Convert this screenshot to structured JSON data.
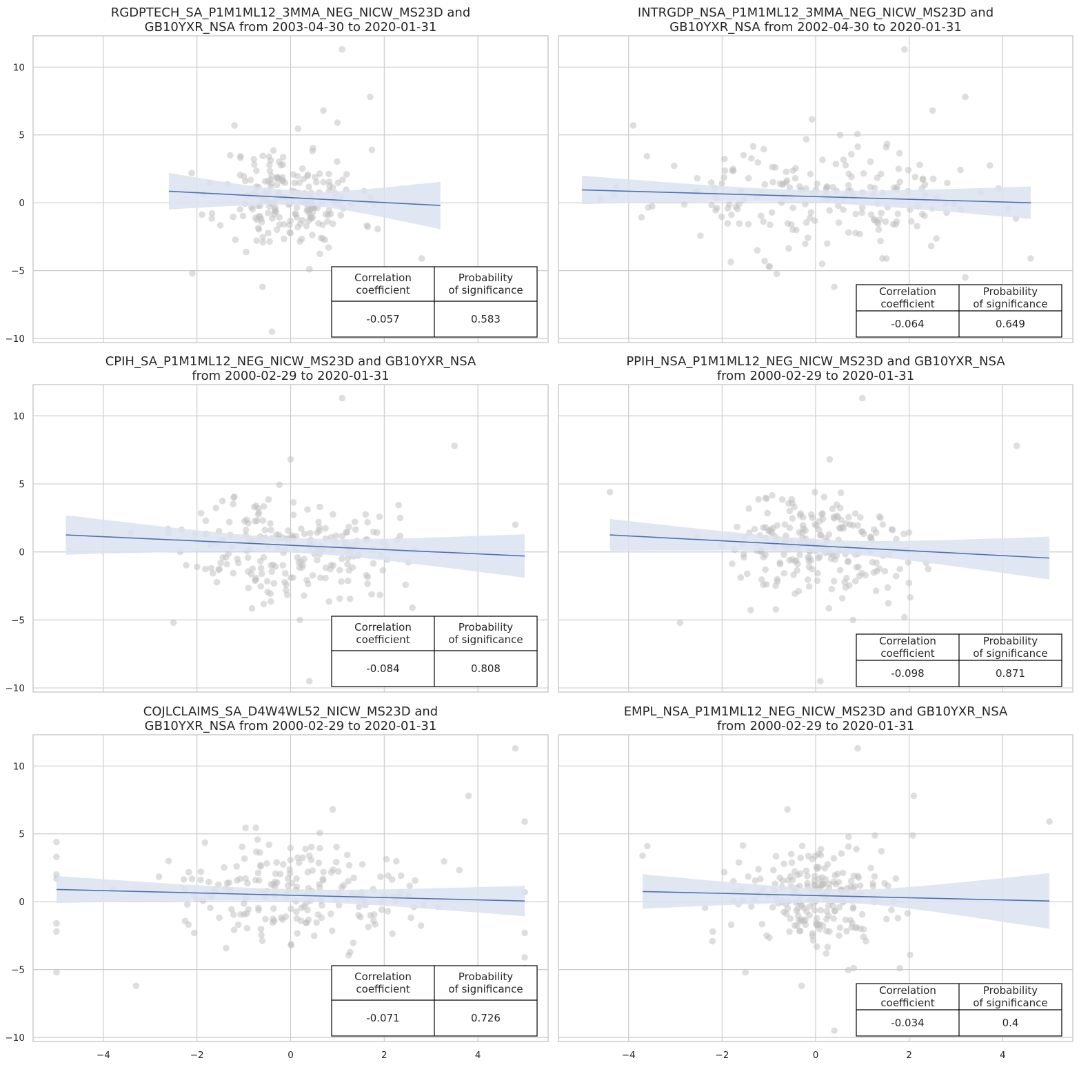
{
  "chart_data": [
    {
      "type": "scatter",
      "title_lines": [
        "RGDPTECH_SA_P1M1ML12_3MMA_NEG_NICW_MS23D and",
        "GB10YXR_NSA from 2003-04-30 to 2020-01-31"
      ],
      "xlim": [
        -5.5,
        5.5
      ],
      "ylim": [
        -10.3,
        12.3
      ],
      "xticks": [
        -4,
        -2,
        0,
        2,
        4
      ],
      "yticks": [
        -10,
        -5,
        0,
        5,
        10
      ],
      "x_tick_labels_visible": false,
      "regression": {
        "x": [
          -2.6,
          3.2
        ],
        "y": [
          0.85,
          -0.2
        ],
        "ci_lo_start": -0.55,
        "ci_hi_start": 2.15,
        "ci_lo_end": -1.9,
        "ci_hi_end": 1.6
      },
      "scatter_seed": 11,
      "scatter_count": 200,
      "scatter_x_spread": 0.75,
      "scatter_x_range": [
        -2.6,
        3.2
      ],
      "points": [
        [
          1.1,
          11.3
        ],
        [
          1.7,
          7.8
        ],
        [
          0.7,
          6.8
        ],
        [
          1.0,
          5.9
        ],
        [
          -1.2,
          5.7
        ],
        [
          2.8,
          -4.1
        ],
        [
          -2.1,
          -5.2
        ],
        [
          -0.4,
          -9.5
        ],
        [
          -0.6,
          -6.2
        ],
        [
          0.4,
          -4.9
        ]
      ],
      "table": {
        "headers": [
          "Correlation\ncoefficient",
          "Probability\nof significance"
        ],
        "values": [
          "-0.057",
          "0.583"
        ]
      }
    },
    {
      "type": "scatter",
      "title_lines": [
        "INTRGDP_NSA_P1M1ML12_3MMA_NEG_NICW_MS23D and",
        "GB10YXR_NSA from 2002-04-30 to 2020-01-31"
      ],
      "xlim": [
        -5.5,
        5.5
      ],
      "ylim": [
        -10.3,
        12.3
      ],
      "xticks": [
        -4,
        -2,
        0,
        2,
        4
      ],
      "yticks": [
        -10,
        -5,
        0,
        5,
        10
      ],
      "x_tick_labels_visible": false,
      "regression": {
        "x": [
          -5.0,
          4.6
        ],
        "y": [
          0.95,
          0.0
        ],
        "ci_lo_start": -0.1,
        "ci_hi_start": 2.0,
        "ci_lo_end": -1.25,
        "ci_hi_end": 1.15
      },
      "scatter_seed": 23,
      "scatter_count": 200,
      "scatter_x_spread": 1.7,
      "scatter_x_range": [
        -5.0,
        4.6
      ],
      "points": [
        [
          1.9,
          11.3
        ],
        [
          3.2,
          7.8
        ],
        [
          2.5,
          6.8
        ],
        [
          -3.9,
          5.7
        ],
        [
          4.6,
          -4.1
        ],
        [
          3.2,
          -5.5
        ],
        [
          0.4,
          -6.2
        ],
        [
          -1.0,
          -4.7
        ]
      ],
      "table": {
        "headers": [
          "Correlation\ncoefficient",
          "Probability\nof significance"
        ],
        "values": [
          "-0.064",
          "0.649"
        ]
      }
    },
    {
      "type": "scatter",
      "title_lines": [
        "CPIH_SA_P1M1ML12_NEG_NICW_MS23D and GB10YXR_NSA",
        "from 2000-02-29 to 2020-01-31"
      ],
      "xlim": [
        -5.5,
        5.5
      ],
      "ylim": [
        -10.3,
        12.3
      ],
      "xticks": [
        -4,
        -2,
        0,
        2,
        4
      ],
      "yticks": [
        -10,
        -5,
        0,
        5,
        10
      ],
      "x_tick_labels_visible": false,
      "regression": {
        "x": [
          -4.8,
          5.0
        ],
        "y": [
          1.25,
          -0.3
        ],
        "ci_lo_start": -0.25,
        "ci_hi_start": 2.65,
        "ci_lo_end": -1.95,
        "ci_hi_end": 1.25
      },
      "scatter_seed": 37,
      "scatter_count": 220,
      "scatter_x_spread": 1.1,
      "scatter_x_range": [
        -4.8,
        5.0
      ],
      "points": [
        [
          1.1,
          11.3
        ],
        [
          3.5,
          7.8
        ],
        [
          0.0,
          6.8
        ],
        [
          2.6,
          -4.1
        ],
        [
          -2.5,
          -5.2
        ],
        [
          0.4,
          -9.5
        ],
        [
          0.2,
          -5.0
        ],
        [
          4.8,
          2.0
        ]
      ],
      "table": {
        "headers": [
          "Correlation\ncoefficient",
          "Probability\nof significance"
        ],
        "values": [
          "-0.084",
          "0.808"
        ]
      }
    },
    {
      "type": "scatter",
      "title_lines": [
        "PPIH_NSA_P1M1ML12_NEG_NICW_MS23D and GB10YXR_NSA",
        "from 2000-02-29 to 2020-01-31"
      ],
      "xlim": [
        -5.5,
        5.5
      ],
      "ylim": [
        -10.3,
        12.3
      ],
      "xticks": [
        -4,
        -2,
        0,
        2,
        4
      ],
      "yticks": [
        -10,
        -5,
        0,
        5,
        10
      ],
      "x_tick_labels_visible": false,
      "regression": {
        "x": [
          -4.4,
          5.0
        ],
        "y": [
          1.25,
          -0.45
        ],
        "ci_lo_start": 0.1,
        "ci_hi_start": 2.45,
        "ci_lo_end": -2.05,
        "ci_hi_end": 1.1
      },
      "scatter_seed": 51,
      "scatter_count": 220,
      "scatter_x_spread": 1.0,
      "scatter_x_range": [
        -4.4,
        5.0
      ],
      "points": [
        [
          1.0,
          11.3
        ],
        [
          4.3,
          7.8
        ],
        [
          0.3,
          6.8
        ],
        [
          -4.4,
          4.4
        ],
        [
          0.1,
          -9.5
        ],
        [
          -2.9,
          -5.2
        ],
        [
          0.8,
          -5.0
        ],
        [
          1.9,
          -4.8
        ]
      ],
      "table": {
        "headers": [
          "Correlation\ncoefficient",
          "Probability\nof significance"
        ],
        "values": [
          "-0.098",
          "0.871"
        ]
      }
    },
    {
      "type": "scatter",
      "title_lines": [
        "COJLCLAIMS_SA_D4W4WL52_NICW_MS23D and",
        "GB10YXR_NSA from 2000-02-29 to 2020-01-31"
      ],
      "xlim": [
        -5.5,
        5.5
      ],
      "ylim": [
        -10.3,
        12.3
      ],
      "xticks": [
        -4,
        -2,
        0,
        2,
        4
      ],
      "yticks": [
        -10,
        -5,
        0,
        5,
        10
      ],
      "x_tick_labels_visible": true,
      "regression": {
        "x": [
          -5.0,
          5.0
        ],
        "y": [
          0.9,
          0.05
        ],
        "ci_lo_start": -0.1,
        "ci_hi_start": 1.9,
        "ci_lo_end": -1.05,
        "ci_hi_end": 1.2
      },
      "scatter_seed": 67,
      "scatter_count": 210,
      "scatter_x_spread": 1.3,
      "scatter_x_range": [
        -5.0,
        5.0
      ],
      "points": [
        [
          4.8,
          11.3
        ],
        [
          3.8,
          7.8
        ],
        [
          0.9,
          6.8
        ],
        [
          5.0,
          5.9
        ],
        [
          -3.3,
          -6.2
        ],
        [
          -5.0,
          -5.2
        ],
        [
          5.0,
          -4.9
        ],
        [
          5.0,
          -4.1
        ],
        [
          -5.0,
          4.4
        ],
        [
          -5.0,
          2.0
        ],
        [
          -5.0,
          -2.2
        ],
        [
          -5.0,
          -1.6
        ],
        [
          5.0,
          -2.3
        ],
        [
          5.0,
          0.7
        ],
        [
          -5.0,
          1.7
        ],
        [
          -5.0,
          3.3
        ]
      ],
      "table": {
        "headers": [
          "Correlation\ncoefficient",
          "Probability\nof significance"
        ],
        "values": [
          "-0.071",
          "0.726"
        ]
      }
    },
    {
      "type": "scatter",
      "title_lines": [
        "EMPL_NSA_P1M1ML12_NEG_NICW_MS23D and GB10YXR_NSA",
        "from 2000-02-29 to 2020-01-31"
      ],
      "xlim": [
        -5.5,
        5.5
      ],
      "ylim": [
        -10.3,
        12.3
      ],
      "xticks": [
        -4,
        -2,
        0,
        2,
        4
      ],
      "yticks": [
        -10,
        -5,
        0,
        5,
        10
      ],
      "x_tick_labels_visible": true,
      "regression": {
        "x": [
          -3.7,
          5.0
        ],
        "y": [
          0.75,
          0.05
        ],
        "ci_lo_start": -0.55,
        "ci_hi_start": 2.0,
        "ci_lo_end": -1.9,
        "ci_hi_end": 2.2
      },
      "scatter_seed": 83,
      "scatter_count": 220,
      "scatter_x_spread": 0.85,
      "scatter_x_range": [
        -3.7,
        5.0
      ],
      "points": [
        [
          0.9,
          11.3
        ],
        [
          2.1,
          7.8
        ],
        [
          -0.6,
          6.8
        ],
        [
          5.0,
          5.9
        ],
        [
          0.4,
          -9.5
        ],
        [
          -0.3,
          -6.2
        ],
        [
          -1.5,
          -5.2
        ],
        [
          1.8,
          -4.9
        ],
        [
          -3.7,
          3.4
        ],
        [
          -3.6,
          4.1
        ]
      ],
      "table": {
        "headers": [
          "Correlation\ncoefficient",
          "Probability\nof significance"
        ],
        "values": [
          "-0.034",
          "0.4"
        ]
      }
    }
  ],
  "colors": {
    "scatter": "#bebebe",
    "line": "#4c72b0",
    "ci_band": "#dce3f0",
    "grid": "#cccccc",
    "spine": "#cccccc",
    "text": "#262626"
  }
}
